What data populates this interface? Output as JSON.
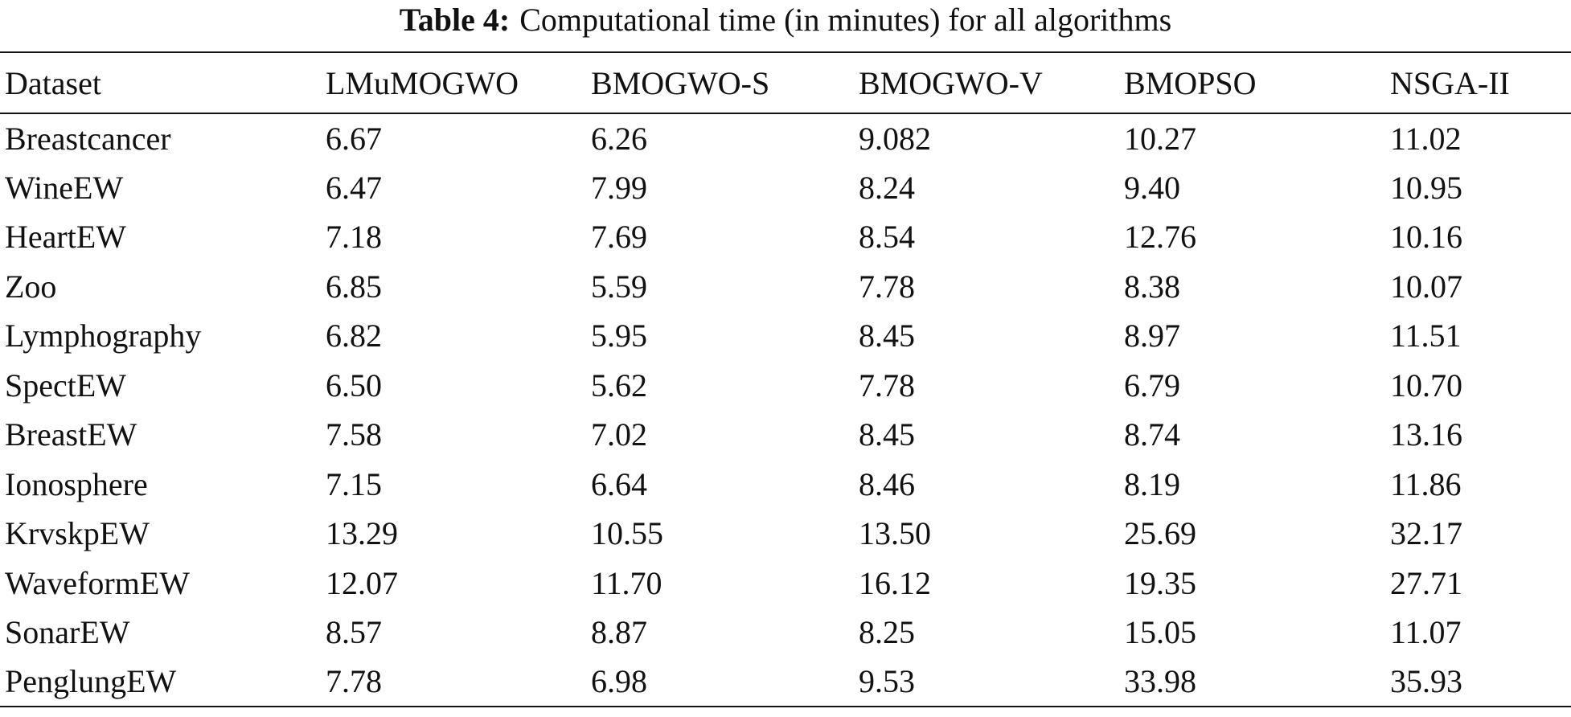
{
  "title": {
    "label": "Table 4:",
    "text": "Computational time (in minutes) for all algorithms"
  },
  "table": {
    "header": [
      "Dataset",
      "LMuMOGWO",
      "BMOGWO-S",
      "BMOGWO-V",
      "BMOPSO",
      "NSGA-II"
    ],
    "rows": [
      [
        "Breastcancer",
        "6.67",
        "6.26",
        "9.082",
        "10.27",
        "11.02"
      ],
      [
        "WineEW",
        "6.47",
        "7.99",
        "8.24",
        "9.40",
        "10.95"
      ],
      [
        "HeartEW",
        "7.18",
        "7.69",
        "8.54",
        "12.76",
        "10.16"
      ],
      [
        "Zoo",
        "6.85",
        "5.59",
        "7.78",
        "8.38",
        "10.07"
      ],
      [
        "Lymphography",
        "6.82",
        "5.95",
        "8.45",
        "8.97",
        "11.51"
      ],
      [
        "SpectEW",
        "6.50",
        "5.62",
        "7.78",
        "6.79",
        "10.70"
      ],
      [
        "BreastEW",
        "7.58",
        "7.02",
        "8.45",
        "8.74",
        "13.16"
      ],
      [
        "Ionosphere",
        "7.15",
        "6.64",
        "8.46",
        "8.19",
        "11.86"
      ],
      [
        "KrvskpEW",
        "13.29",
        "10.55",
        "13.50",
        "25.69",
        "32.17"
      ],
      [
        "WaveformEW",
        "12.07",
        "11.70",
        "16.12",
        "19.35",
        "27.71"
      ],
      [
        "SonarEW",
        "8.57",
        "8.87",
        "8.25",
        "15.05",
        "11.07"
      ],
      [
        "PenglungEW",
        "7.78",
        "6.98",
        "9.53",
        "33.98",
        "35.93"
      ]
    ]
  }
}
